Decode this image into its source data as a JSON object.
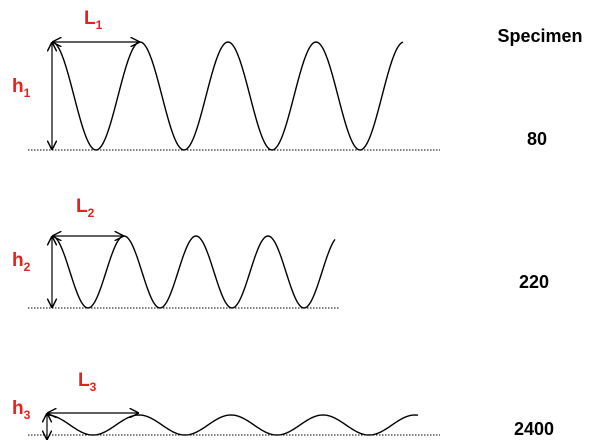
{
  "header": {
    "title": "Specimen"
  },
  "rows": [
    {
      "length_label": {
        "letter": "L",
        "subscript": "1"
      },
      "height_label": {
        "letter": "h",
        "subscript": "1"
      },
      "specimen": 80
    },
    {
      "length_label": {
        "letter": "L",
        "subscript": "2"
      },
      "height_label": {
        "letter": "h",
        "subscript": "2"
      },
      "specimen": 220
    },
    {
      "length_label": {
        "letter": "L",
        "subscript": "3"
      },
      "height_label": {
        "letter": "h",
        "subscript": "3"
      },
      "specimen": 2400
    }
  ]
}
